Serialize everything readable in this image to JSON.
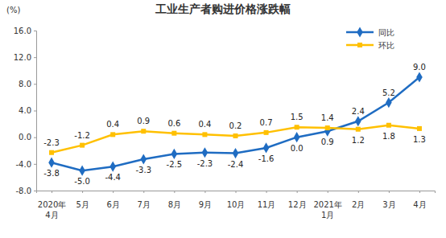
{
  "chart_data": {
    "type": "line",
    "title": "工业生产者购进价格涨跌幅",
    "y_label": "(%)",
    "categories": [
      "2020年\n4月",
      "5月",
      "6月",
      "7月",
      "8月",
      "9月",
      "10月",
      "11月",
      "12月",
      "2021年\n1月",
      "2月",
      "3月",
      "4月"
    ],
    "series": [
      {
        "name": "同比",
        "color": "#1f6cc2",
        "marker": "diamond",
        "values": [
          -3.8,
          -5.0,
          -4.4,
          -3.3,
          -2.5,
          -2.3,
          -2.4,
          -1.6,
          0.0,
          0.9,
          2.4,
          5.2,
          9.0
        ],
        "value_labels": [
          "-3.8",
          "-5.0",
          "-4.4",
          "-3.3",
          "-2.5",
          "-2.3",
          "-2.4",
          "-1.6",
          "0.0",
          "0.9",
          "2.4",
          "5.2",
          "9.0"
        ]
      },
      {
        "name": "环比",
        "color": "#ffc000",
        "marker": "square",
        "values": [
          -2.3,
          -1.2,
          0.4,
          0.9,
          0.6,
          0.4,
          0.2,
          0.7,
          1.5,
          1.4,
          1.2,
          1.8,
          1.3
        ],
        "value_labels": [
          "-2.3",
          "-1.2",
          "0.4",
          "0.9",
          "0.6",
          "0.4",
          "0.2",
          "0.7",
          "1.5",
          "1.4",
          "1.2",
          "1.8",
          "1.3"
        ]
      }
    ],
    "ylim": [
      -8,
      16
    ],
    "yticks": [
      {
        "value": -8,
        "label": "-8.0"
      },
      {
        "value": -4,
        "label": "-4.0"
      },
      {
        "value": 0,
        "label": "0.0"
      },
      {
        "value": 4,
        "label": "4.0"
      },
      {
        "value": 8,
        "label": "8.0"
      },
      {
        "value": 12,
        "label": "12.0"
      },
      {
        "value": 16,
        "label": "16.0"
      }
    ],
    "grid": false,
    "legend": "upper right",
    "data_labels": true
  }
}
